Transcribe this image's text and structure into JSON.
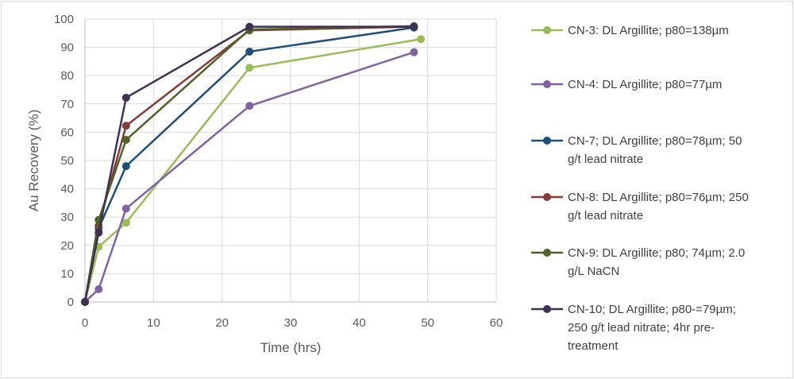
{
  "chart_data": {
    "type": "line",
    "title": "",
    "xlabel": "Time (hrs)",
    "ylabel": "Au Recovery (%)",
    "xlim": [
      0,
      60
    ],
    "ylim": [
      0,
      100
    ],
    "xticks": [
      "0",
      "10",
      "20",
      "30",
      "40",
      "50",
      "60"
    ],
    "yticks": [
      "0",
      "10",
      "20",
      "30",
      "40",
      "50",
      "60",
      "70",
      "80",
      "90",
      "100"
    ],
    "grid": true,
    "legend_position": "right",
    "series": [
      {
        "name": "CN-3: DL Argillite; p80=138µm",
        "legend_lines": [
          "CN-3: DL Argillite; p80=138µm"
        ],
        "color": "#9bbb59",
        "points": [
          [
            0,
            0
          ],
          [
            2,
            19.5
          ],
          [
            6,
            28
          ],
          [
            24,
            82.8
          ],
          [
            49,
            92.9
          ]
        ]
      },
      {
        "name": "CN-4: DL Argillite; p80=77µm",
        "legend_lines": [
          "CN-4: DL Argillite; p80=77µm"
        ],
        "color": "#8064a2",
        "points": [
          [
            0,
            0
          ],
          [
            2,
            4.5
          ],
          [
            6,
            33
          ],
          [
            24,
            69.3
          ],
          [
            48,
            88.3
          ]
        ]
      },
      {
        "name": "CN-7; DL Argillite; p80=78µm; 50 g/t lead nitrate",
        "legend_lines": [
          "CN-7; DL Argillite; p80=78µm; 50",
          "g/t lead nitrate"
        ],
        "color": "#1f4e79",
        "points": [
          [
            0,
            0
          ],
          [
            2,
            26
          ],
          [
            6,
            48
          ],
          [
            24,
            88.5
          ],
          [
            48,
            97
          ]
        ]
      },
      {
        "name": "CN-8: DL Argillite; p80=76µm; 250 g/t lead nitrate",
        "legend_lines": [
          "CN-8: DL Argillite; p80=76µm; 250",
          "g/t lead nitrate"
        ],
        "color": "#843c39",
        "points": [
          [
            0,
            0
          ],
          [
            2,
            27
          ],
          [
            6,
            62.3
          ],
          [
            24,
            96
          ],
          [
            48,
            97.3
          ]
        ]
      },
      {
        "name": "CN-9: DL Argillite; p80; 74µm; 2.0 g/L NaCN",
        "legend_lines": [
          "CN-9: DL Argillite; p80; 74µm; 2.0",
          "g/L NaCN"
        ],
        "color": "#4f6228",
        "points": [
          [
            0,
            0
          ],
          [
            2,
            29
          ],
          [
            6,
            57.3
          ],
          [
            24,
            96.3
          ],
          [
            48,
            97.5
          ]
        ]
      },
      {
        "name": "CN-10; DL Argillite; p80-=79µm; 250 g/t lead nitrate; 4hr pre-treatment",
        "legend_lines": [
          "CN-10; DL Argillite; p80-=79µm;",
          "250 g/t lead nitrate; 4hr pre-",
          "treatment"
        ],
        "color": "#403152",
        "points": [
          [
            0,
            0
          ],
          [
            2,
            24.5
          ],
          [
            6,
            72.2
          ],
          [
            24,
            97.3
          ],
          [
            48,
            97.3
          ]
        ]
      }
    ]
  }
}
